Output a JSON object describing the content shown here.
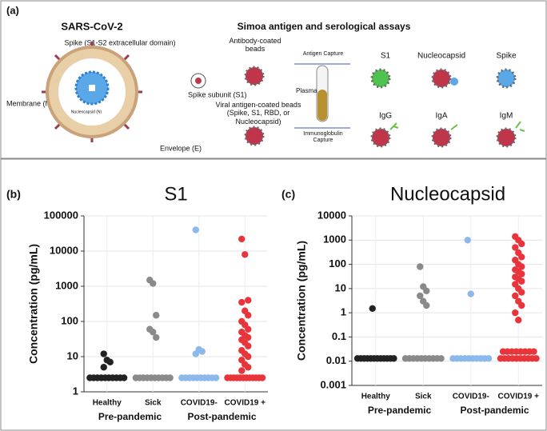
{
  "diagram": {
    "panel": "(a)",
    "virus_title": "SARS-CoV-2",
    "spike_label": "Spike (S1-S2 extracellular domain)",
    "membrane_label": "Membrane (M)",
    "nucleocapsid_label": "Nucleocapsid (N)",
    "spike_subunit_label": "Spike subunit (S1)",
    "envelope_label": "Envelope (E)",
    "assay_title": "Simoa antigen and serological assays",
    "antibody_beads": "Antibody-coated beads",
    "antigen_capture": "Antigen Capture",
    "plasma": "Plasma",
    "antigen_beads": "Viral antigen-coated beads (Spike, S1, RBD, or Nucleocapsid)",
    "immunoglobulin_capture": "Immunoglobulin Capture",
    "antigen_targets": [
      "S1",
      "Nucleocapsid",
      "Spike"
    ],
    "antibody_targets": [
      "IgG",
      "IgA",
      "IgM"
    ]
  },
  "chart_data": [
    {
      "type": "strip",
      "panel": "(b)",
      "title": "S1",
      "y_label": "Concentration (pg/mL)",
      "log_y": true,
      "grid": true,
      "ylim": [
        1,
        100000
      ],
      "yticks": [
        1,
        10,
        100,
        1000,
        10000,
        100000
      ],
      "categories": [
        "Healthy",
        "Sick",
        "COVID19-",
        "COVID19 +"
      ],
      "groups": [
        "Pre-pandemic",
        "Post-pandemic"
      ],
      "colors": [
        "#222222",
        "#8a8a8a",
        "#8bb9ec",
        "#e8353c"
      ],
      "values": [
        [
          12,
          8,
          7,
          5,
          2.5,
          2.5,
          2.5,
          2.5,
          2.5,
          2.5,
          2.5,
          2.5,
          2.5,
          2.5
        ],
        [
          1500,
          1200,
          150,
          60,
          50,
          35,
          2.5,
          2.5,
          2.5,
          2.5,
          2.5,
          2.5,
          2.5,
          2.5,
          2.5,
          2.5
        ],
        [
          40000,
          16,
          14,
          12,
          2.5,
          2.5,
          2.5,
          2.5,
          2.5,
          2.5,
          2.5,
          2.5,
          2.5,
          2.5
        ],
        [
          22000,
          8000,
          400,
          350,
          200,
          150,
          100,
          80,
          60,
          50,
          40,
          35,
          30,
          25,
          20,
          15,
          12,
          10,
          8,
          6,
          5,
          4,
          2.5,
          2.5,
          2.5,
          2.5,
          2.5,
          2.5,
          2.5,
          2.5,
          2.5,
          2.5,
          2.5,
          2.5
        ]
      ]
    },
    {
      "type": "strip",
      "panel": "(c)",
      "title": "Nucleocapsid",
      "y_label": "Concentration (pg/mL)",
      "log_y": true,
      "grid": true,
      "ylim": [
        0.001,
        10000
      ],
      "yticks": [
        0.001,
        0.01,
        0.1,
        1,
        10,
        100,
        1000,
        10000
      ],
      "categories": [
        "Healthy",
        "Sick",
        "COVID19-",
        "COVID19 +"
      ],
      "groups": [
        "Pre-pandemic",
        "Post-pandemic"
      ],
      "colors": [
        "#222222",
        "#8a8a8a",
        "#8bb9ec",
        "#e8353c"
      ],
      "values": [
        [
          1.5,
          0.013,
          0.013,
          0.013,
          0.013,
          0.013,
          0.013,
          0.013,
          0.013,
          0.013,
          0.013,
          0.013,
          0.013
        ],
        [
          80,
          12,
          8,
          5,
          3,
          2,
          0.013,
          0.013,
          0.013,
          0.013,
          0.013,
          0.013,
          0.013,
          0.013,
          0.013,
          0.013
        ],
        [
          1000,
          6,
          0.013,
          0.013,
          0.013,
          0.013,
          0.013,
          0.013,
          0.013,
          0.013,
          0.013,
          0.013
        ],
        [
          1400,
          1000,
          700,
          500,
          300,
          200,
          150,
          100,
          80,
          60,
          50,
          40,
          30,
          25,
          20,
          15,
          10,
          7,
          5,
          3,
          2,
          1,
          0.5,
          0.025,
          0.025,
          0.025,
          0.025,
          0.025,
          0.025,
          0.025,
          0.025,
          0.013,
          0.013,
          0.013,
          0.013,
          0.013,
          0.013,
          0.013,
          0.013,
          0.013,
          0.013
        ]
      ]
    }
  ]
}
